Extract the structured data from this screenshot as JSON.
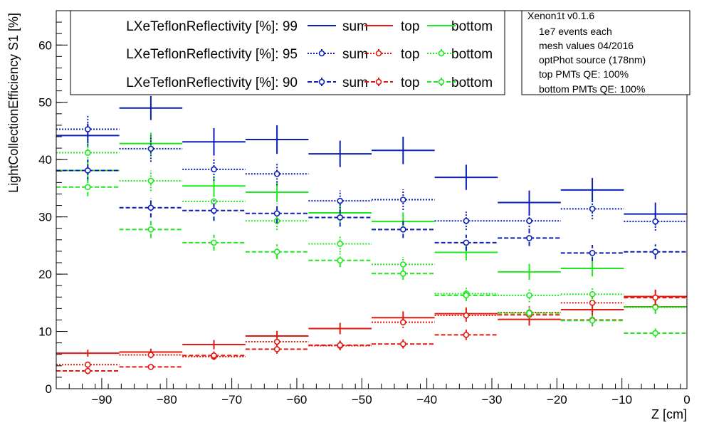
{
  "chart_data": {
    "type": "scatter",
    "xlabel": "Z [cm]",
    "ylabel": "LightCollectionEfficiency S1 [%]",
    "xlim": [
      -97,
      0
    ],
    "ylim": [
      0,
      66
    ],
    "x_ticks": [
      -90,
      -80,
      -70,
      -60,
      -50,
      -40,
      -30,
      -20,
      -10,
      0
    ],
    "x_tick_labels": [
      "−90",
      "−80",
      "−70",
      "−60",
      "−50",
      "−40",
      "−30",
      "−20",
      "−10",
      "0"
    ],
    "y_ticks": [
      0,
      10,
      20,
      30,
      40,
      50,
      60
    ],
    "y_tick_labels": [
      "0",
      "10",
      "20",
      "30",
      "40",
      "50",
      "60"
    ],
    "bin_edges": [
      -97,
      -87.3,
      -77.6,
      -67.9,
      -58.2,
      -48.5,
      -38.8,
      -29.1,
      -19.4,
      -9.7,
      0
    ],
    "grid": false,
    "legend": {
      "placement": "top-left",
      "rows": [
        {
          "label": "LXeTeflonReflectivity [%]: 99",
          "entries": [
            "sum",
            "top",
            "bottom"
          ]
        },
        {
          "label": "LXeTeflonReflectivity [%]: 95",
          "entries": [
            "sum",
            "top",
            "bottom"
          ]
        },
        {
          "label": "LXeTeflonReflectivity [%]: 90",
          "entries": [
            "sum",
            "top",
            "bottom"
          ]
        }
      ]
    },
    "info_box": {
      "placement": "top-right",
      "lines": [
        "Xenon1t v0.1.6",
        "1e7 events each",
        "mesh values 04/2016",
        "optPhot source (178nm)",
        "top PMTs QE: 100%",
        "bottom PMTs QE: 100%"
      ]
    },
    "colors": {
      "sum": "#0a1fb3",
      "top": "#e01a10",
      "bottom": "#1ee81e"
    },
    "series": [
      {
        "name": "sum",
        "group": "LXeTeflonReflectivity [%]: 99",
        "kind": "sum",
        "style": "solid",
        "values": [
          44.2,
          49.0,
          43.1,
          43.5,
          41.0,
          41.6,
          36.9,
          32.5,
          34.7,
          30.5
        ],
        "errors": [
          2.1,
          2.1,
          2.4,
          2.5,
          2.3,
          2.4,
          2.2,
          2.1,
          2.1,
          2.0
        ]
      },
      {
        "name": "top",
        "group": "LXeTeflonReflectivity [%]: 99",
        "kind": "top",
        "style": "solid",
        "values": [
          6.2,
          6.4,
          7.7,
          9.2,
          10.5,
          12.4,
          13.1,
          12.1,
          13.8,
          16.1
        ],
        "errors": [
          0.6,
          0.6,
          0.8,
          0.9,
          1.0,
          1.1,
          1.1,
          1.1,
          1.2,
          1.2
        ]
      },
      {
        "name": "bottom",
        "group": "LXeTeflonReflectivity [%]: 99",
        "kind": "bottom",
        "style": "solid",
        "values": [
          38.1,
          42.8,
          35.4,
          34.3,
          30.7,
          29.2,
          23.8,
          20.4,
          21.0,
          14.3
        ],
        "errors": [
          1.8,
          1.9,
          1.7,
          1.7,
          1.6,
          1.6,
          1.4,
          1.4,
          1.4,
          1.2
        ]
      },
      {
        "name": "sum",
        "group": "LXeTeflonReflectivity [%]: 95",
        "kind": "sum",
        "style": "dotted",
        "values": [
          45.3,
          41.9,
          38.3,
          37.5,
          32.8,
          33.0,
          29.3,
          29.3,
          31.4,
          29.2
        ],
        "errors": [
          2.4,
          2.3,
          2.0,
          2.0,
          1.8,
          1.8,
          1.6,
          1.6,
          1.8,
          1.6
        ]
      },
      {
        "name": "top",
        "group": "LXeTeflonReflectivity [%]: 95",
        "kind": "top",
        "style": "dotted",
        "values": [
          4.2,
          5.9,
          5.6,
          8.2,
          7.5,
          11.6,
          12.8,
          13.3,
          15.0,
          14.3
        ],
        "errors": [
          0.5,
          0.6,
          0.6,
          0.8,
          0.8,
          1.0,
          1.1,
          1.1,
          1.3,
          1.2
        ]
      },
      {
        "name": "bottom",
        "group": "LXeTeflonReflectivity [%]: 95",
        "kind": "bottom",
        "style": "dotted",
        "values": [
          41.2,
          36.3,
          32.7,
          29.3,
          25.3,
          21.7,
          16.6,
          16.3,
          16.5,
          14.2
        ],
        "errors": [
          2.0,
          1.8,
          1.7,
          1.6,
          1.5,
          1.3,
          1.2,
          1.2,
          1.2,
          1.1
        ]
      },
      {
        "name": "sum",
        "group": "LXeTeflonReflectivity [%]: 90",
        "kind": "sum",
        "style": "dashed",
        "values": [
          38.1,
          31.6,
          31.1,
          30.6,
          29.9,
          27.8,
          25.5,
          26.3,
          23.7,
          23.9
        ],
        "errors": [
          1.9,
          1.7,
          1.8,
          1.7,
          1.6,
          1.5,
          1.4,
          1.4,
          1.4,
          1.3
        ]
      },
      {
        "name": "top",
        "group": "LXeTeflonReflectivity [%]: 90",
        "kind": "top",
        "style": "dashed",
        "values": [
          3.1,
          3.8,
          5.8,
          6.9,
          7.6,
          7.8,
          9.4,
          12.9,
          12.0,
          15.9
        ],
        "errors": [
          0.6,
          0.5,
          0.7,
          0.8,
          0.8,
          0.8,
          0.9,
          1.1,
          1.1,
          1.3
        ]
      },
      {
        "name": "bottom",
        "group": "LXeTeflonReflectivity [%]: 90",
        "kind": "bottom",
        "style": "dashed",
        "values": [
          35.2,
          27.8,
          25.5,
          23.9,
          22.4,
          20.1,
          16.3,
          13.2,
          11.9,
          9.7
        ],
        "errors": [
          1.6,
          1.5,
          1.4,
          1.3,
          1.2,
          1.1,
          1.0,
          0.9,
          0.9,
          0.8
        ]
      }
    ]
  }
}
